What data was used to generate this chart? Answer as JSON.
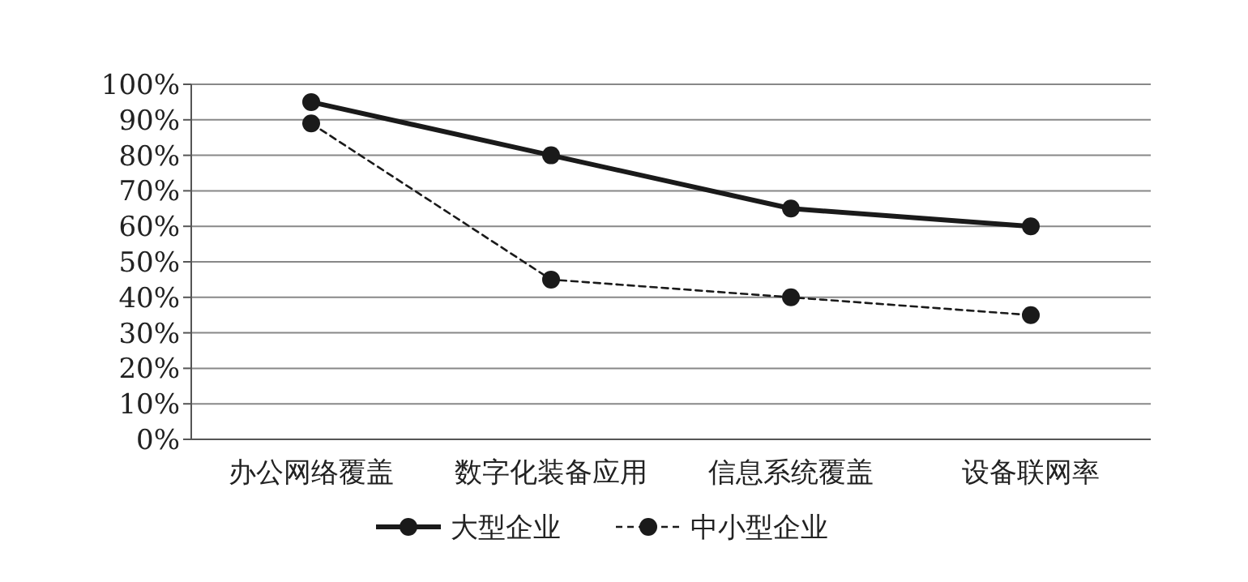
{
  "chart_data": {
    "type": "line",
    "categories": [
      "办公网络覆盖",
      "数字化装备应用",
      "信息系统覆盖",
      "设备联网率"
    ],
    "series": [
      {
        "name": "大型企业",
        "color": "#1a1a1a",
        "line_style": "solid",
        "values": [
          95,
          80,
          65,
          60
        ]
      },
      {
        "name": "中小型企业",
        "color": "#1a1a1a",
        "line_style": "dashed",
        "values": [
          89,
          45,
          40,
          35
        ]
      }
    ],
    "ylim": [
      0,
      100
    ],
    "yticks": [
      {
        "value": 0,
        "label": "0%"
      },
      {
        "value": 10,
        "label": "10%"
      },
      {
        "value": 20,
        "label": "20%"
      },
      {
        "value": 30,
        "label": "30%"
      },
      {
        "value": 40,
        "label": "40%"
      },
      {
        "value": 50,
        "label": "50%"
      },
      {
        "value": 60,
        "label": "60%"
      },
      {
        "value": 70,
        "label": "70%"
      },
      {
        "value": 80,
        "label": "80%"
      },
      {
        "value": 90,
        "label": "90%"
      },
      {
        "value": 100,
        "label": "100%"
      }
    ],
    "grid": "y",
    "legend": "bottom",
    "marker": "circle"
  }
}
